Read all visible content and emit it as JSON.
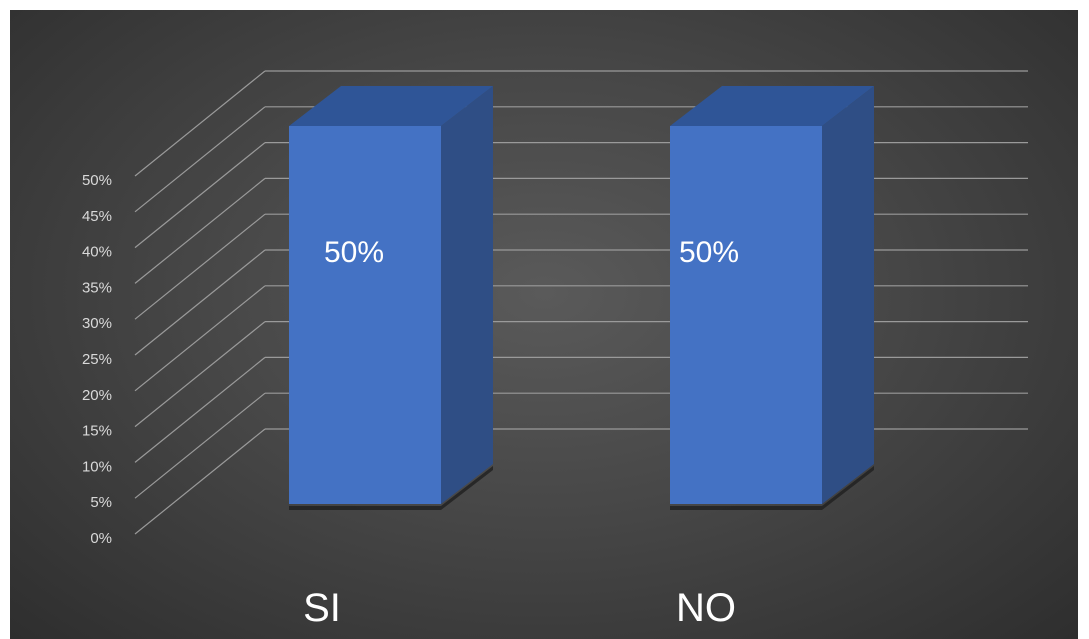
{
  "chart_data": {
    "type": "bar",
    "style": "3d-column",
    "categories": [
      "SI",
      "NO"
    ],
    "values": [
      50,
      50
    ],
    "data_labels": [
      "50%",
      "50%"
    ],
    "y_ticks": [
      "0%",
      "5%",
      "10%",
      "15%",
      "20%",
      "25%",
      "30%",
      "35%",
      "40%",
      "45%",
      "50%"
    ],
    "ylim": [
      0,
      50
    ],
    "grid": true,
    "legend": false,
    "colors": {
      "bar_front": "#4472c4",
      "bar_side": "#2f4e85",
      "bar_top": "#2f5597",
      "gridline": "#9a9a9a",
      "background": "#474747"
    }
  }
}
